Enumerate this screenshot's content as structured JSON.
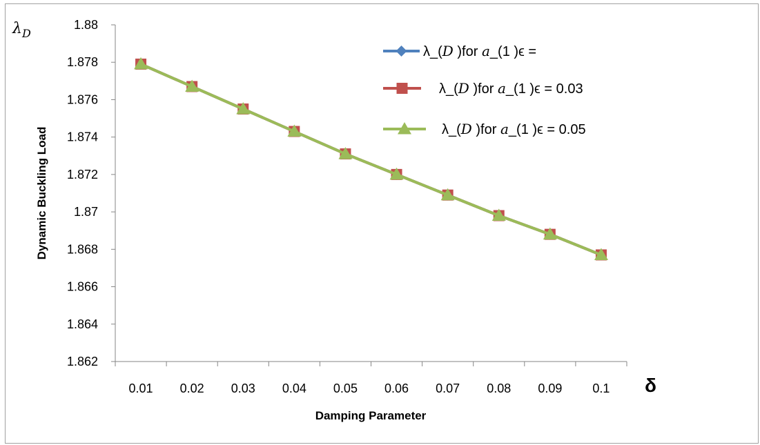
{
  "chart_data": {
    "type": "line",
    "xlabel": "Damping Parameter",
    "ylabel": "Dynamic Buckling Load",
    "x_symbol": "δ",
    "y_symbol": {
      "base": "λ",
      "sub": "D"
    },
    "categories": [
      "0.01",
      "0.02",
      "0.03",
      "0.04",
      "0.05",
      "0.06",
      "0.07",
      "0.08",
      "0.09",
      "0.1"
    ],
    "ylim": [
      1.862,
      1.88
    ],
    "yticks": [
      "1.862",
      "1.864",
      "1.866",
      "1.868",
      "1.87",
      "1.872",
      "1.874",
      "1.876",
      "1.878",
      "1.88"
    ],
    "grid": false,
    "legend_position": "top-right",
    "series": [
      {
        "name": "λ_(D )for a_(1 )ϵ =",
        "legend_parts": [
          "λ_(",
          "D",
          " )for ",
          "a",
          "_(1 )ϵ ="
        ],
        "color": "#4f81bd",
        "marker": "diamond",
        "values": [
          1.8779,
          1.8767,
          1.8755,
          1.8743,
          1.8731,
          1.872,
          1.8709,
          1.8698,
          1.8688,
          1.8677
        ]
      },
      {
        "name": "λ_(D )for a_(1 )ϵ = 0.03",
        "legend_parts": [
          "λ_(",
          "D",
          " )for ",
          "a",
          "_(1 )ϵ = 0.03"
        ],
        "color": "#c0504d",
        "marker": "square",
        "values": [
          1.8779,
          1.8767,
          1.8755,
          1.8743,
          1.8731,
          1.872,
          1.8709,
          1.8698,
          1.8688,
          1.8677
        ]
      },
      {
        "name": "λ_(D )for a_(1 )ϵ = 0.05",
        "legend_parts": [
          "λ_(",
          "D",
          " )for ",
          "a",
          "_(1 )ϵ = 0.05"
        ],
        "color": "#9bbb59",
        "marker": "triangle",
        "values": [
          1.8779,
          1.8767,
          1.8755,
          1.8743,
          1.8731,
          1.872,
          1.8709,
          1.8698,
          1.8688,
          1.8677
        ]
      }
    ]
  }
}
